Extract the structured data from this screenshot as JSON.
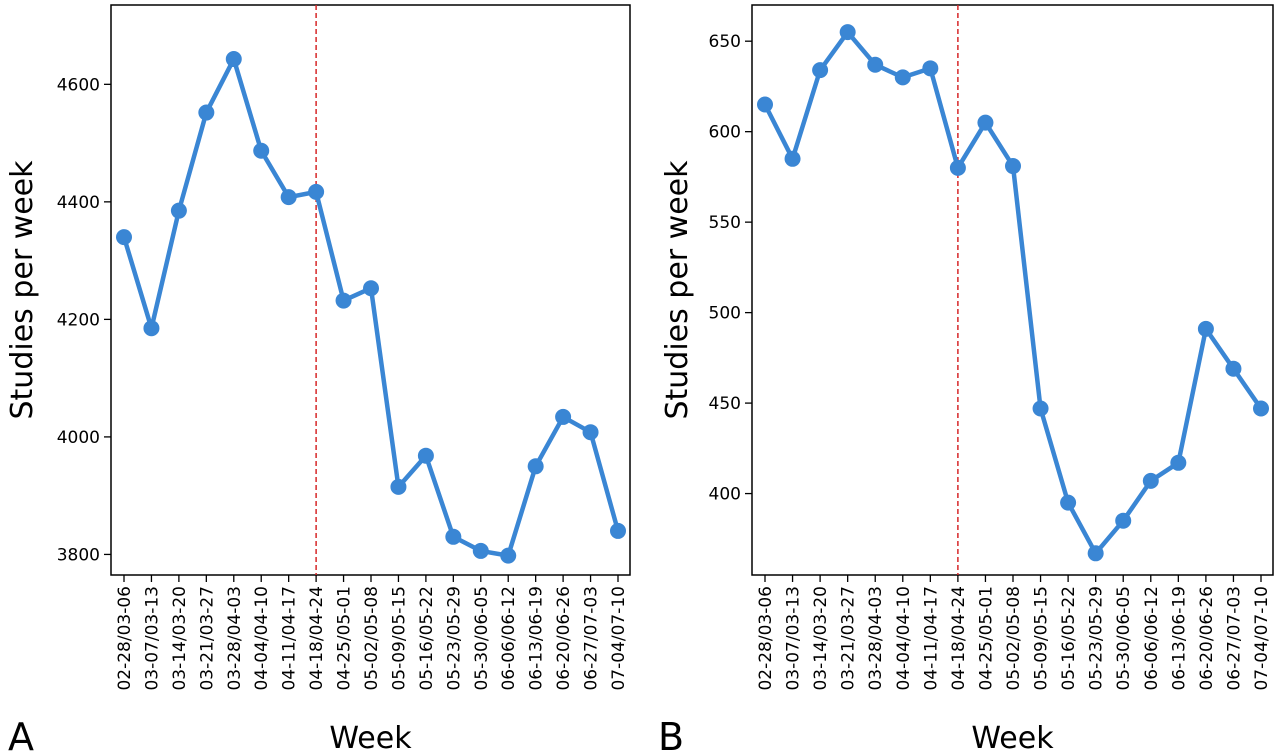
{
  "chart_data": [
    {
      "type": "line",
      "panel_label": "A",
      "xlabel": "Week",
      "ylabel": "Studies per week",
      "categories": [
        "02-28/03-06",
        "03-07/03-13",
        "03-14/03-20",
        "03-21/03-27",
        "03-28/04-03",
        "04-04/04-10",
        "04-11/04-17",
        "04-18/04-24",
        "04-25/05-01",
        "05-02/05-08",
        "05-09/05-15",
        "05-16/05-22",
        "05-23/05-29",
        "05-30/06-05",
        "06-06/06-12",
        "06-13/06-19",
        "06-20/06-26",
        "06-27/07-03",
        "07-04/07-10"
      ],
      "values": [
        4340,
        4185,
        4385,
        4552,
        4643,
        4487,
        4408,
        4417,
        4232,
        4253,
        3915,
        3968,
        3830,
        3806,
        3798,
        3950,
        4034,
        4008,
        3840
      ],
      "ylim": [
        3765,
        4735
      ],
      "yticks": [
        3800,
        4000,
        4200,
        4400,
        4600
      ],
      "reference_line_category": "04-18/04-24",
      "series_color": "#3a86d4",
      "reference_line_color": "#d62728",
      "grid": false
    },
    {
      "type": "line",
      "panel_label": "B",
      "xlabel": "Week",
      "ylabel": "Studies per week",
      "categories": [
        "02-28/03-06",
        "03-07/03-13",
        "03-14/03-20",
        "03-21/03-27",
        "03-28/04-03",
        "04-04/04-10",
        "04-11/04-17",
        "04-18/04-24",
        "04-25/05-01",
        "05-02/05-08",
        "05-09/05-15",
        "05-16/05-22",
        "05-23/05-29",
        "05-30/06-05",
        "06-06/06-12",
        "06-13/06-19",
        "06-20/06-26",
        "06-27/07-03",
        "07-04/07-10"
      ],
      "values": [
        615,
        585,
        634,
        655,
        637,
        630,
        635,
        580,
        605,
        581,
        447,
        395,
        367,
        385,
        407,
        417,
        491,
        469,
        447
      ],
      "ylim": [
        355,
        670
      ],
      "yticks": [
        400,
        450,
        500,
        550,
        600,
        650
      ],
      "reference_line_category": "04-18/04-24",
      "series_color": "#3a86d4",
      "reference_line_color": "#d62728",
      "grid": false
    }
  ]
}
